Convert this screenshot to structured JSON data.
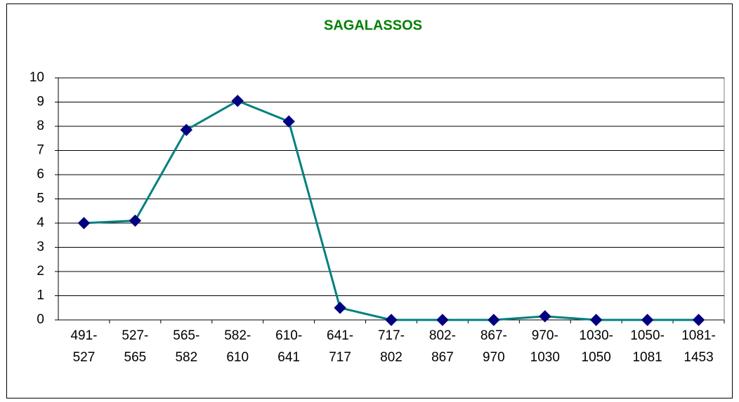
{
  "chart_data": {
    "type": "line",
    "title": "SAGALASSOS",
    "categories": [
      "491-527",
      "527-565",
      "565-582",
      "582-610",
      "610-641",
      "641-717",
      "717-802",
      "802-867",
      "867-970",
      "970-1030",
      "1030-1050",
      "1050-1081",
      "1081-1453"
    ],
    "series": [
      {
        "name": "SAGALASSOS",
        "color": "#008080",
        "marker_color": "#000080",
        "values": [
          4.0,
          4.1,
          7.85,
          9.05,
          8.2,
          0.5,
          0,
          0,
          0,
          0.15,
          0,
          0,
          0
        ]
      }
    ],
    "ylim": [
      0,
      10
    ],
    "yticks": [
      0,
      1,
      2,
      3,
      4,
      5,
      6,
      7,
      8,
      9,
      10
    ],
    "grid": true
  }
}
